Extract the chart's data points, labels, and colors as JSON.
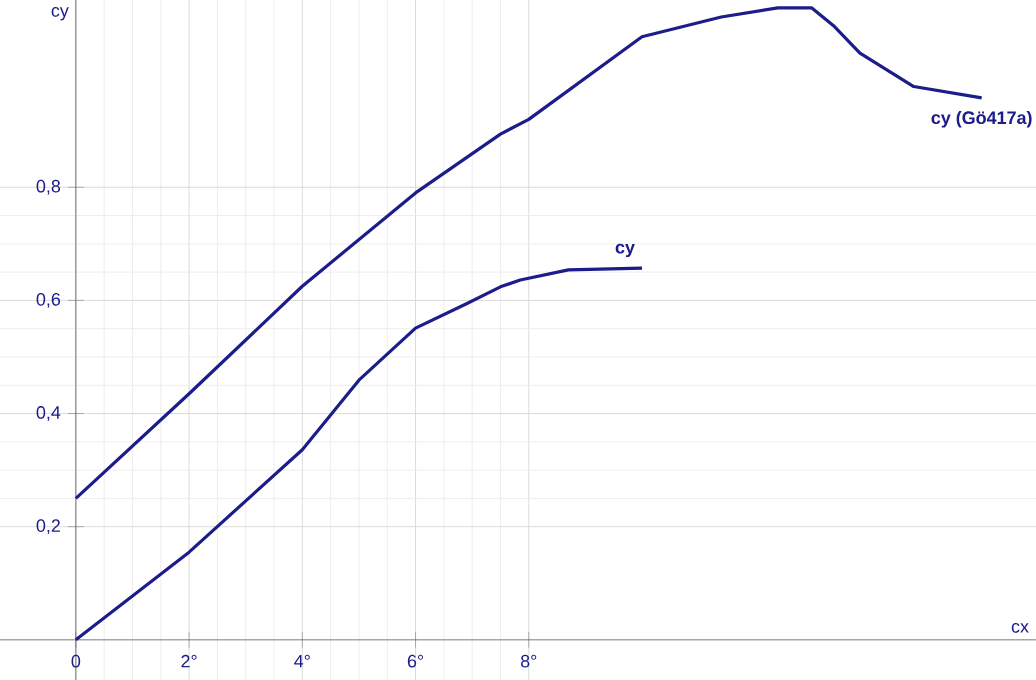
{
  "chart_data": {
    "type": "line",
    "xlabel": "cx",
    "ylabel": "cy",
    "xlim": [
      -1.34,
      16.96
    ],
    "ylim": [
      -0.071,
      1.131
    ],
    "xticks": [
      {
        "value": 0,
        "label": "0"
      },
      {
        "value": 2,
        "label": "2°"
      },
      {
        "value": 4,
        "label": "4°"
      },
      {
        "value": 6,
        "label": "6°"
      },
      {
        "value": 8,
        "label": "8°"
      }
    ],
    "yticks": [
      {
        "value": 0.2,
        "label": "0,2"
      },
      {
        "value": 0.4,
        "label": "0,4"
      },
      {
        "value": 0.6,
        "label": "0,6"
      },
      {
        "value": 0.8,
        "label": "0,8"
      }
    ],
    "grid": true,
    "line_style": "solid",
    "series": [
      {
        "name": "cy (Gö417a)",
        "color": "#1c1c8a",
        "x": [
          0,
          2,
          4,
          6,
          7.5,
          8,
          10,
          11.4,
          12.4,
          13,
          13.4,
          13.85,
          14.8,
          16
        ],
        "values": [
          0.25,
          0.435,
          0.625,
          0.79,
          0.894,
          0.92,
          1.066,
          1.101,
          1.117,
          1.117,
          1.084,
          1.037,
          0.978,
          0.958
        ]
      },
      {
        "name": "cy",
        "color": "#1c1c8a",
        "x": [
          0,
          2,
          4,
          5,
          6,
          6.9,
          7.5,
          7.85,
          8.7,
          10
        ],
        "values": [
          0,
          0.155,
          0.336,
          0.459,
          0.551,
          0.594,
          0.624,
          0.636,
          0.654,
          0.657
        ]
      }
    ]
  }
}
